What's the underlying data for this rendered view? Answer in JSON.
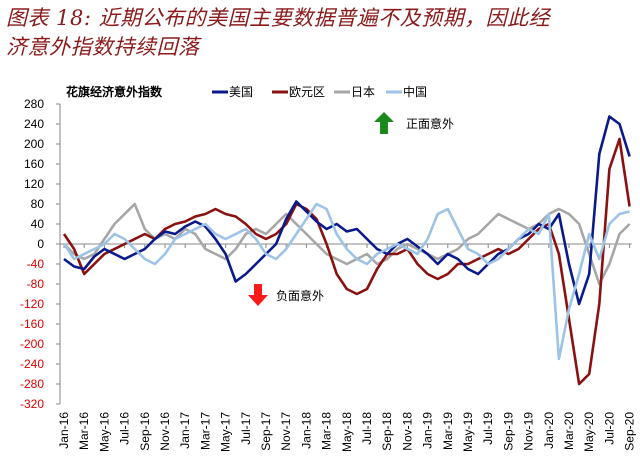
{
  "title_line1": "图表 18:  近期公布的美国主要数据普遍不及预期，因此经",
  "title_line2": "济意外指数持续回落",
  "chart_data": {
    "type": "line",
    "title": "花旗经济意外指数",
    "xlabel": "",
    "ylabel": "",
    "ylim": [
      -320,
      280
    ],
    "yticks": [
      280,
      240,
      200,
      160,
      120,
      80,
      40,
      0,
      -40,
      -80,
      -120,
      -160,
      -200,
      -240,
      -280,
      -320
    ],
    "xtick_labels": [
      "Jan-16",
      "Mar-16",
      "May-16",
      "Jul-16",
      "Sep-16",
      "Nov-16",
      "Jan-17",
      "Mar-17",
      "May-17",
      "Jul-17",
      "Sep-17",
      "Nov-17",
      "Jan-18",
      "Mar-18",
      "May-18",
      "Jul-18",
      "Sep-18",
      "Nov-18",
      "Jan-19",
      "Mar-19",
      "May-19",
      "Jul-19",
      "Sep-19",
      "Nov-19",
      "Jan-20",
      "Mar-20",
      "May-20",
      "Jul-20",
      "Sep-20"
    ],
    "x_start": "Jan-16",
    "x_step": "monthly",
    "legend_position": "top",
    "grid": false,
    "series": [
      {
        "name": "美国",
        "color": "#0a1a8c",
        "values": [
          -30,
          -45,
          -50,
          -25,
          -10,
          -20,
          -30,
          -20,
          -10,
          10,
          25,
          20,
          35,
          45,
          35,
          10,
          -20,
          -75,
          -60,
          -40,
          -20,
          0,
          50,
          85,
          65,
          45,
          30,
          40,
          25,
          30,
          10,
          -10,
          -20,
          0,
          10,
          -5,
          -20,
          -40,
          -20,
          -30,
          -50,
          -60,
          -40,
          -20,
          -10,
          10,
          20,
          40,
          30,
          60,
          -40,
          -120,
          -60,
          180,
          255,
          240,
          175
        ]
      },
      {
        "name": "欧元区",
        "color": "#8b1010",
        "values": [
          20,
          -10,
          -60,
          -40,
          -20,
          -10,
          0,
          10,
          20,
          10,
          30,
          40,
          45,
          55,
          60,
          70,
          60,
          55,
          40,
          20,
          10,
          20,
          40,
          80,
          70,
          50,
          0,
          -60,
          -90,
          -100,
          -90,
          -50,
          -20,
          -20,
          -10,
          -40,
          -60,
          -70,
          -60,
          -40,
          -40,
          -30,
          -20,
          -10,
          -20,
          -10,
          10,
          30,
          40,
          -20,
          -150,
          -280,
          -260,
          -120,
          150,
          210,
          75
        ]
      },
      {
        "name": "日本",
        "color": "#a6a6a6",
        "values": [
          0,
          -20,
          -30,
          -20,
          10,
          40,
          60,
          80,
          30,
          10,
          20,
          10,
          30,
          20,
          -10,
          -20,
          -30,
          -10,
          20,
          30,
          20,
          40,
          60,
          40,
          20,
          0,
          -20,
          -30,
          -40,
          -30,
          -20,
          -40,
          -30,
          -10,
          0,
          -10,
          -20,
          -30,
          -20,
          -10,
          10,
          20,
          40,
          60,
          50,
          40,
          30,
          40,
          60,
          70,
          60,
          40,
          -20,
          -80,
          -40,
          20,
          40
        ]
      },
      {
        "name": "中国",
        "color": "#9dc3e6",
        "values": [
          0,
          -30,
          -20,
          -10,
          0,
          20,
          10,
          -10,
          -30,
          -40,
          -20,
          10,
          20,
          30,
          40,
          20,
          10,
          20,
          30,
          10,
          -20,
          -30,
          -10,
          20,
          50,
          80,
          70,
          20,
          -10,
          -30,
          -40,
          -20,
          -10,
          0,
          -10,
          -20,
          10,
          60,
          70,
          30,
          -10,
          -20,
          -40,
          -30,
          -10,
          10,
          30,
          20,
          60,
          -230,
          -130,
          -60,
          20,
          -30,
          40,
          60,
          65
        ]
      }
    ],
    "annotations": [
      {
        "text": "正面意外",
        "arrow": "up",
        "color": "#1a8a1a"
      },
      {
        "text": "负面意外",
        "arrow": "down",
        "color": "#ff1a1a"
      }
    ]
  }
}
